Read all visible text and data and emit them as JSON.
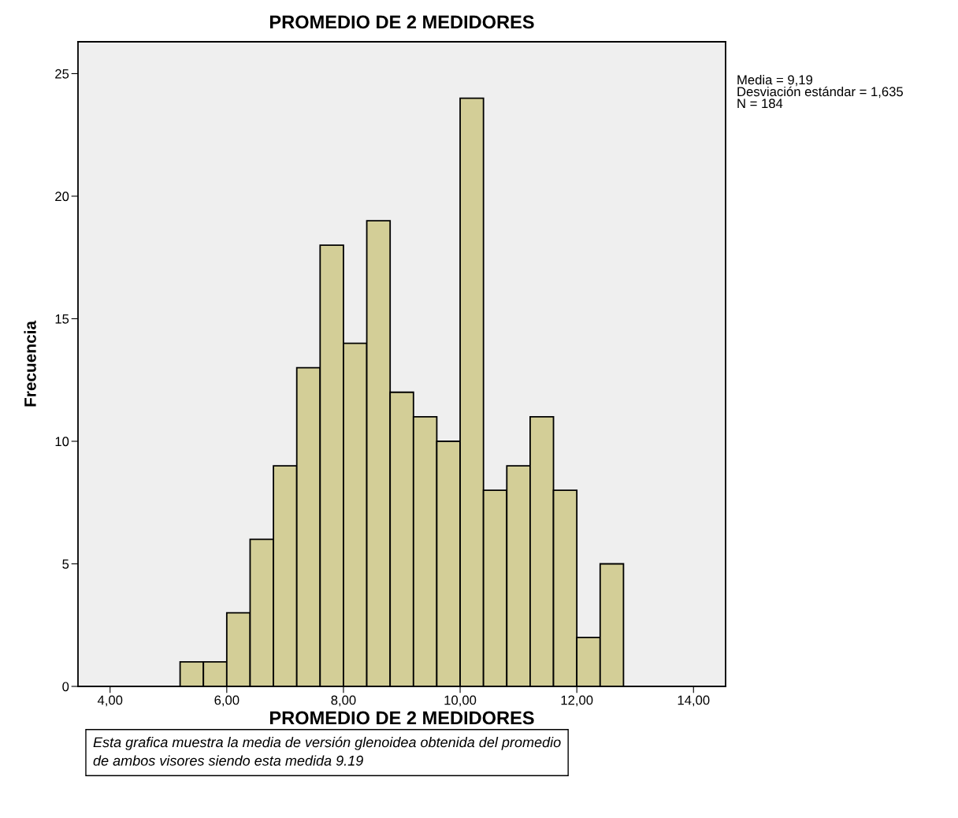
{
  "chart_data": {
    "type": "histogram",
    "title": "PROMEDIO DE 2 MEDIDORES",
    "xlabel": "PROMEDIO DE 2 MEDIDORES",
    "ylabel": "Frecuencia",
    "bins": [
      5.2,
      5.6,
      6.0,
      6.4,
      6.8,
      7.2,
      7.6,
      8.0,
      8.4,
      8.8,
      9.2,
      9.6,
      10.0,
      10.4,
      10.8,
      11.2,
      11.6,
      12.0,
      12.4,
      12.8
    ],
    "values": [
      1,
      1,
      3,
      6,
      9,
      13,
      18,
      14,
      19,
      12,
      11,
      10,
      24,
      8,
      9,
      11,
      8,
      2,
      5
    ],
    "color": "#d3ce97",
    "xlim": [
      3.45,
      14.55
    ],
    "ylim": [
      0,
      26.3
    ],
    "xticks": [
      {
        "value": 4,
        "label": "4,00"
      },
      {
        "value": 6,
        "label": "6,00"
      },
      {
        "value": 8,
        "label": "8,00"
      },
      {
        "value": 10,
        "label": "10,00"
      },
      {
        "value": 12,
        "label": "12,00"
      },
      {
        "value": 14,
        "label": "14,00"
      }
    ],
    "yticks": [
      0,
      5,
      10,
      15,
      20,
      25
    ],
    "grid": false,
    "annotations": [
      "Media = 9,19\nDesviación estándar = 1,635\nN = 184",
      "Esta grafica muestra la media de versión glenoidea obtenida del promedio\nde ambos visores siendo esta medida 9.19"
    ]
  }
}
